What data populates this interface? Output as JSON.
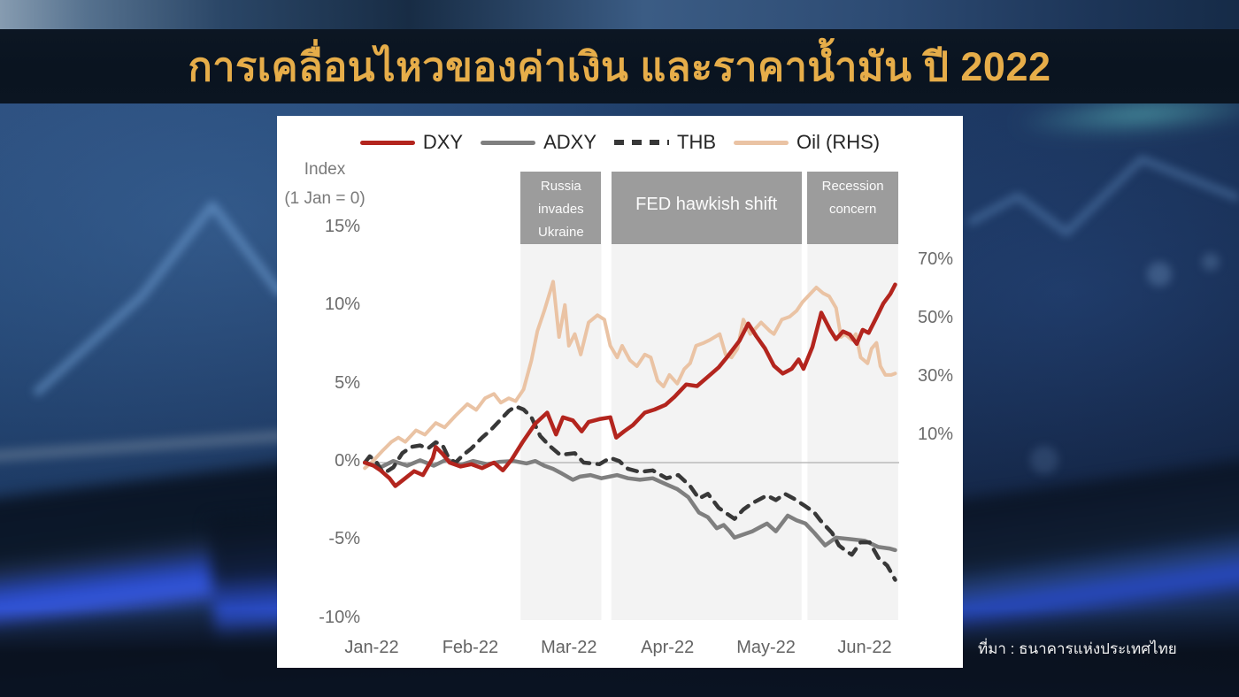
{
  "title": "การเคลื่อนไหวของค่าเงิน และราคาน้ำมัน ปี 2022",
  "source": "ที่มา : ธนาคารแห่งประเทศไทย",
  "colors": {
    "title_gold": "#e6ad49",
    "band": "#f3f3f3",
    "box": "#9c9c9c",
    "zero_line": "#aeaeae",
    "dxy": "#b3251e",
    "adxy": "#7f7f7f",
    "thb": "#383838",
    "oil": "#eac3a4"
  },
  "chart_data": {
    "type": "line",
    "title": "",
    "y_left": {
      "label_line1": "Index",
      "label_line2": "(1 Jan = 0)",
      "ticks": [
        "15%",
        "10%",
        "5%",
        "0%",
        "-5%",
        "-10%"
      ],
      "tick_values": [
        15,
        10,
        5,
        0,
        -5,
        -10
      ],
      "range": [
        -10,
        15
      ]
    },
    "y_right": {
      "ticks": [
        "70%",
        "50%",
        "30%",
        "10%"
      ],
      "tick_values": [
        70,
        50,
        30,
        10
      ],
      "range": [
        10,
        70
      ],
      "note": "Oil plotted on right-hand scale"
    },
    "x": {
      "ticks": [
        "Jan-22",
        "Feb-22",
        "Mar-22",
        "Apr-22",
        "May-22",
        "Jun-22"
      ],
      "unit": "months since 1 Jan 2022"
    },
    "annotations": [
      {
        "label": "Russia invades Ukraine",
        "lines": [
          "Russia",
          "invades",
          "Ukraine"
        ],
        "x_from": 1.51,
        "x_to": 2.33
      },
      {
        "label": "FED hawkish shift",
        "lines": [
          "FED hawkish shift"
        ],
        "x_from": 2.43,
        "x_to": 4.36
      },
      {
        "label": "Recession concern",
        "lines": [
          "Recession",
          "concern"
        ],
        "x_from": 4.42,
        "x_to": 5.34
      }
    ],
    "legend": [
      {
        "name": "DXY",
        "style": "solid",
        "color": "#b3251e"
      },
      {
        "name": "ADXY",
        "style": "solid",
        "color": "#7f7f7f"
      },
      {
        "name": "THB",
        "style": "dashed",
        "color": "#383838"
      },
      {
        "name": "Oil (RHS)",
        "style": "solid",
        "color": "#eac3a4"
      }
    ],
    "series": [
      {
        "name": "Oil (RHS)",
        "axis": "right",
        "style": "solid",
        "color": "#eac3a4",
        "width": 4,
        "points": [
          [
            -0.07,
            -1
          ],
          [
            0,
            1
          ],
          [
            0.11,
            5
          ],
          [
            0.2,
            8
          ],
          [
            0.27,
            9.5
          ],
          [
            0.34,
            8
          ],
          [
            0.45,
            12
          ],
          [
            0.54,
            10.5
          ],
          [
            0.65,
            14.5
          ],
          [
            0.74,
            13
          ],
          [
            0.85,
            17
          ],
          [
            0.97,
            21
          ],
          [
            1.06,
            19
          ],
          [
            1.15,
            23
          ],
          [
            1.24,
            24.5
          ],
          [
            1.31,
            21.5
          ],
          [
            1.39,
            23
          ],
          [
            1.46,
            22
          ],
          [
            1.54,
            26
          ],
          [
            1.62,
            36
          ],
          [
            1.68,
            46
          ],
          [
            1.75,
            53
          ],
          [
            1.84,
            63
          ],
          [
            1.9,
            44
          ],
          [
            1.96,
            55
          ],
          [
            2,
            41
          ],
          [
            2.06,
            45
          ],
          [
            2.12,
            38
          ],
          [
            2.2,
            49
          ],
          [
            2.29,
            51.5
          ],
          [
            2.36,
            50
          ],
          [
            2.42,
            41
          ],
          [
            2.49,
            37
          ],
          [
            2.54,
            41
          ],
          [
            2.62,
            36
          ],
          [
            2.69,
            34
          ],
          [
            2.77,
            38
          ],
          [
            2.83,
            37
          ],
          [
            2.9,
            29
          ],
          [
            2.96,
            27
          ],
          [
            3.02,
            31
          ],
          [
            3.1,
            28
          ],
          [
            3.17,
            33
          ],
          [
            3.23,
            35
          ],
          [
            3.29,
            41
          ],
          [
            3.37,
            42
          ],
          [
            3.43,
            43
          ],
          [
            3.53,
            45
          ],
          [
            3.59,
            38
          ],
          [
            3.65,
            37
          ],
          [
            3.71,
            40
          ],
          [
            3.77,
            50
          ],
          [
            3.84,
            45
          ],
          [
            3.95,
            49
          ],
          [
            4.04,
            46
          ],
          [
            4.08,
            45
          ],
          [
            4.16,
            50
          ],
          [
            4.24,
            51
          ],
          [
            4.31,
            53
          ],
          [
            4.37,
            56
          ],
          [
            4.51,
            61
          ],
          [
            4.58,
            59
          ],
          [
            4.64,
            58
          ],
          [
            4.71,
            54
          ],
          [
            4.76,
            44
          ],
          [
            4.8,
            45
          ],
          [
            4.87,
            43
          ],
          [
            4.91,
            45
          ],
          [
            4.96,
            37
          ],
          [
            5.03,
            35
          ],
          [
            5.07,
            40
          ],
          [
            5.12,
            42
          ],
          [
            5.16,
            34
          ],
          [
            5.21,
            31
          ],
          [
            5.27,
            31
          ],
          [
            5.31,
            31.5
          ]
        ]
      },
      {
        "name": "ADXY",
        "axis": "left",
        "style": "solid",
        "color": "#7f7f7f",
        "width": 4.5,
        "points": [
          [
            -0.07,
            0
          ],
          [
            0.09,
            -0.3
          ],
          [
            0.22,
            0.1
          ],
          [
            0.36,
            -0.2
          ],
          [
            0.49,
            0.15
          ],
          [
            0.63,
            -0.2
          ],
          [
            0.76,
            0.2
          ],
          [
            0.9,
            -0.15
          ],
          [
            1.03,
            0.1
          ],
          [
            1.17,
            -0.1
          ],
          [
            1.3,
            0.05
          ],
          [
            1.44,
            0.1
          ],
          [
            1.57,
            -0.05
          ],
          [
            1.66,
            0.1
          ],
          [
            1.75,
            -0.2
          ],
          [
            1.84,
            -0.4
          ],
          [
            1.93,
            -0.7
          ],
          [
            2.04,
            -1.1
          ],
          [
            2.11,
            -0.9
          ],
          [
            2.22,
            -0.8
          ],
          [
            2.33,
            -1
          ],
          [
            2.49,
            -0.8
          ],
          [
            2.6,
            -1
          ],
          [
            2.72,
            -1.1
          ],
          [
            2.85,
            -1
          ],
          [
            2.99,
            -1.4
          ],
          [
            3.1,
            -1.7
          ],
          [
            3.21,
            -2.2
          ],
          [
            3.32,
            -3.2
          ],
          [
            3.41,
            -3.5
          ],
          [
            3.5,
            -4.2
          ],
          [
            3.57,
            -4
          ],
          [
            3.63,
            -4.4
          ],
          [
            3.68,
            -4.8
          ],
          [
            3.77,
            -4.6
          ],
          [
            3.86,
            -4.4
          ],
          [
            3.95,
            -4.1
          ],
          [
            4.01,
            -3.9
          ],
          [
            4.1,
            -4.4
          ],
          [
            4.22,
            -3.4
          ],
          [
            4.31,
            -3.7
          ],
          [
            4.4,
            -3.9
          ],
          [
            4.49,
            -4.5
          ],
          [
            4.6,
            -5.3
          ],
          [
            4.71,
            -4.8
          ],
          [
            4.85,
            -4.9
          ],
          [
            5,
            -5
          ],
          [
            5.14,
            -5.4
          ],
          [
            5.25,
            -5.5
          ],
          [
            5.31,
            -5.6
          ]
        ]
      },
      {
        "name": "THB",
        "axis": "left",
        "style": "dashed",
        "color": "#383838",
        "width": 4.5,
        "points": [
          [
            -0.07,
            0
          ],
          [
            -0.02,
            0.4
          ],
          [
            0.04,
            0.1
          ],
          [
            0.12,
            -0.7
          ],
          [
            0.22,
            -0.3
          ],
          [
            0.31,
            0.6
          ],
          [
            0.4,
            1
          ],
          [
            0.49,
            1.1
          ],
          [
            0.57,
            0.9
          ],
          [
            0.65,
            1.3
          ],
          [
            0.72,
            1.1
          ],
          [
            0.78,
            0.3
          ],
          [
            0.85,
            0
          ],
          [
            0.93,
            0.5
          ],
          [
            1.01,
            0.9
          ],
          [
            1.12,
            1.6
          ],
          [
            1.21,
            2.1
          ],
          [
            1.3,
            2.7
          ],
          [
            1.39,
            3.3
          ],
          [
            1.46,
            3.6
          ],
          [
            1.54,
            3.4
          ],
          [
            1.62,
            2.9
          ],
          [
            1.71,
            1.7
          ],
          [
            1.8,
            1.1
          ],
          [
            1.91,
            0.5
          ],
          [
            2.06,
            0.6
          ],
          [
            2.15,
            0
          ],
          [
            2.31,
            -0.1
          ],
          [
            2.42,
            0.3
          ],
          [
            2.51,
            0.1
          ],
          [
            2.6,
            -0.4
          ],
          [
            2.72,
            -0.6
          ],
          [
            2.85,
            -0.5
          ],
          [
            2.99,
            -1
          ],
          [
            3.11,
            -0.8
          ],
          [
            3.23,
            -1.5
          ],
          [
            3.32,
            -2.3
          ],
          [
            3.41,
            -2
          ],
          [
            3.52,
            -2.9
          ],
          [
            3.61,
            -3.3
          ],
          [
            3.68,
            -3.6
          ],
          [
            3.77,
            -3
          ],
          [
            3.86,
            -2.6
          ],
          [
            3.95,
            -2.3
          ],
          [
            4.01,
            -2.1
          ],
          [
            4.1,
            -2.4
          ],
          [
            4.19,
            -2
          ],
          [
            4.28,
            -2.3
          ],
          [
            4.4,
            -2.8
          ],
          [
            4.49,
            -3.2
          ],
          [
            4.55,
            -3.7
          ],
          [
            4.67,
            -4.5
          ],
          [
            4.74,
            -5.3
          ],
          [
            4.8,
            -5.6
          ],
          [
            4.87,
            -5.9
          ],
          [
            4.96,
            -5.1
          ],
          [
            5.05,
            -5.1
          ],
          [
            5.14,
            -6.1
          ],
          [
            5.23,
            -6.6
          ],
          [
            5.31,
            -7.5
          ]
        ]
      },
      {
        "name": "DXY",
        "axis": "left",
        "style": "solid",
        "color": "#b3251e",
        "width": 4.5,
        "points": [
          [
            -0.07,
            0
          ],
          [
            0.02,
            -0.2
          ],
          [
            0.09,
            -0.5
          ],
          [
            0.18,
            -1
          ],
          [
            0.24,
            -1.5
          ],
          [
            0.34,
            -1
          ],
          [
            0.43,
            -0.55
          ],
          [
            0.52,
            -0.8
          ],
          [
            0.62,
            0.3
          ],
          [
            0.65,
            1
          ],
          [
            0.72,
            0.55
          ],
          [
            0.79,
            0
          ],
          [
            0.9,
            -0.25
          ],
          [
            1.01,
            -0.1
          ],
          [
            1.12,
            -0.35
          ],
          [
            1.24,
            0
          ],
          [
            1.33,
            -0.5
          ],
          [
            1.42,
            0.2
          ],
          [
            1.53,
            1.3
          ],
          [
            1.66,
            2.5
          ],
          [
            1.78,
            3.2
          ],
          [
            1.87,
            1.8
          ],
          [
            1.94,
            2.9
          ],
          [
            2.04,
            2.7
          ],
          [
            2.13,
            2
          ],
          [
            2.2,
            2.6
          ],
          [
            2.32,
            2.8
          ],
          [
            2.42,
            2.9
          ],
          [
            2.48,
            1.6
          ],
          [
            2.56,
            2
          ],
          [
            2.65,
            2.4
          ],
          [
            2.77,
            3.2
          ],
          [
            2.87,
            3.4
          ],
          [
            2.98,
            3.7
          ],
          [
            3.07,
            4.2
          ],
          [
            3.19,
            5
          ],
          [
            3.3,
            4.9
          ],
          [
            3.41,
            5.5
          ],
          [
            3.52,
            6.1
          ],
          [
            3.61,
            6.8
          ],
          [
            3.73,
            7.8
          ],
          [
            3.82,
            8.9
          ],
          [
            3.9,
            8.1
          ],
          [
            3.99,
            7.3
          ],
          [
            4.08,
            6.2
          ],
          [
            4.17,
            5.7
          ],
          [
            4.26,
            6
          ],
          [
            4.33,
            6.6
          ],
          [
            4.38,
            6
          ],
          [
            4.47,
            7.4
          ],
          [
            4.56,
            9.6
          ],
          [
            4.65,
            8.5
          ],
          [
            4.71,
            7.9
          ],
          [
            4.78,
            8.4
          ],
          [
            4.85,
            8.2
          ],
          [
            4.92,
            7.6
          ],
          [
            4.98,
            8.5
          ],
          [
            5.04,
            8.3
          ],
          [
            5.12,
            9.3
          ],
          [
            5.19,
            10.2
          ],
          [
            5.26,
            10.8
          ],
          [
            5.31,
            11.4
          ]
        ]
      }
    ]
  }
}
